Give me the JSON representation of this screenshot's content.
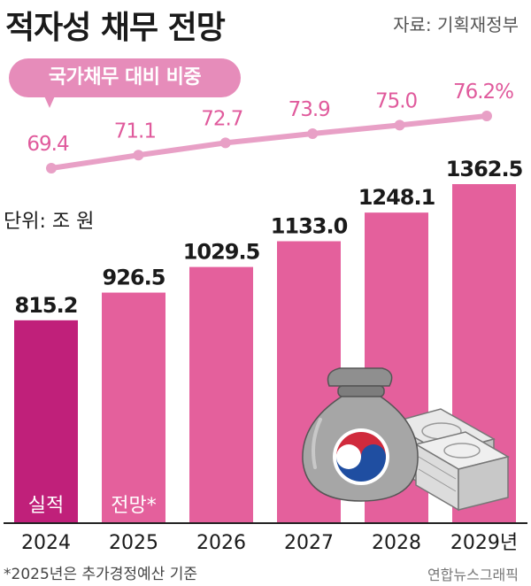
{
  "title": "적자성 채무 전망",
  "source": "자료: 기획재정부",
  "ratio_label": "국가채무 대비 비중",
  "unit_label": "단위: 조 원",
  "footnote": "*2025년은 추가경정예산 기준",
  "credit": "연합뉴스그래픽",
  "colors": {
    "actual": "#c0207a",
    "forecast": "#e4609c",
    "line": "#e8a0c6",
    "ratio_text": "#e05a9c",
    "axis": "#222222"
  },
  "chart_data": [
    {
      "type": "bar",
      "categories": [
        "2024",
        "2025",
        "2026",
        "2027",
        "2028",
        "2029년"
      ],
      "values": [
        815.2,
        926.5,
        1029.5,
        1133.0,
        1248.1,
        1362.5
      ],
      "value_labels": [
        "815.2",
        "926.5",
        "1029.5",
        "1133.0",
        "1248.1",
        "1362.5"
      ],
      "title": "적자성 채무 전망",
      "ylabel": "단위: 조 원",
      "ylim": [
        0,
        1362.5
      ],
      "grid": false,
      "bar_annotations": [
        {
          "index": 0,
          "text": "실적"
        },
        {
          "index": 1,
          "text": "전망*"
        }
      ],
      "icon": "money-bag-and-cash-stack-icon"
    },
    {
      "type": "line",
      "title": "국가채무 대비 비중",
      "x": [
        "2024",
        "2025",
        "2026",
        "2027",
        "2028",
        "2029년"
      ],
      "values": [
        69.4,
        71.1,
        72.7,
        73.9,
        75.0,
        76.2
      ],
      "value_labels": [
        "69.4",
        "71.1",
        "72.7",
        "73.9",
        "75.0",
        "76.2%"
      ]
    }
  ]
}
